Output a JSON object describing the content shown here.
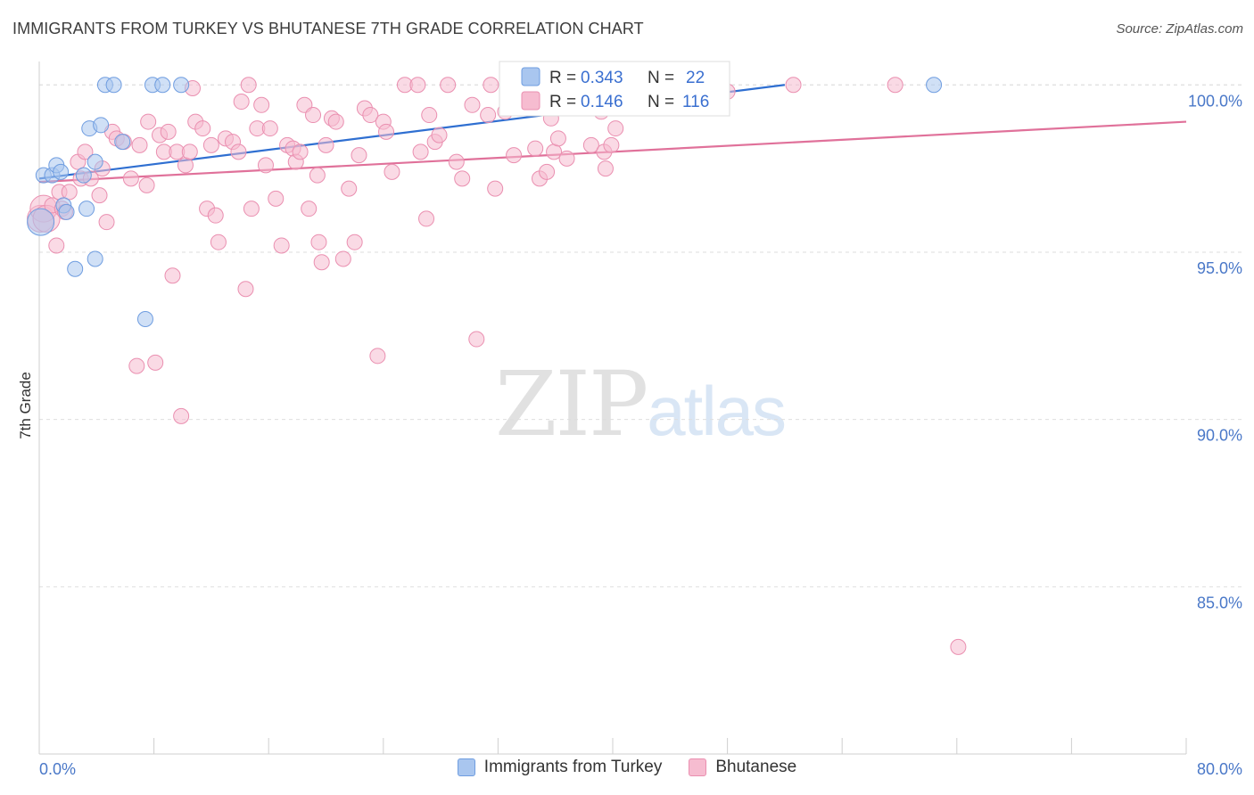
{
  "title": "IMMIGRANTS FROM TURKEY VS BHUTANESE 7TH GRADE CORRELATION CHART",
  "source": "Source: ZipAtlas.com",
  "watermark": {
    "zip": "ZIP",
    "atlas": "atlas"
  },
  "colors": {
    "blue_fill": "#a9c6ef",
    "blue_stroke": "#6f9de0",
    "blue_line": "#2f6fd1",
    "pink_fill": "#f6bcd0",
    "pink_stroke": "#ea8fb0",
    "pink_line": "#e0719a",
    "tick_label": "#4a78c8",
    "grid": "#dedede"
  },
  "legend_box": {
    "row1": {
      "r_label": "R = ",
      "r_value": "0.343",
      "n_label": "N = ",
      "n_value": "22"
    },
    "row2": {
      "r_label": "R = ",
      "r_value": "0.146",
      "n_label": "N = ",
      "n_value": "116"
    }
  },
  "bottom_legend": {
    "series1": "Immigrants from Turkey",
    "series2": "Bhutanese"
  },
  "chart_data": {
    "type": "scatter",
    "ylabel": "7th Grade",
    "xlim": [
      0,
      80
    ],
    "ylim": [
      80.0,
      100.7
    ],
    "x_tick_labels": {
      "left": "0.0%",
      "right": "80.0%"
    },
    "y_ticks": [
      {
        "value": 100,
        "label": "100.0%"
      },
      {
        "value": 95,
        "label": "95.0%"
      },
      {
        "value": 90,
        "label": "90.0%"
      },
      {
        "value": 85,
        "label": "85.0%"
      }
    ],
    "grid": true,
    "legend": "top-center",
    "series": [
      {
        "name": "Immigrants from Turkey",
        "color": "blue",
        "trend": {
          "x": [
            0,
            52
          ],
          "y": [
            97.2,
            100.0
          ]
        },
        "points": [
          [
            0.1,
            95.9
          ],
          [
            0.3,
            97.3
          ],
          [
            0.9,
            97.3
          ],
          [
            1.2,
            97.6
          ],
          [
            1.5,
            97.4
          ],
          [
            1.7,
            96.4
          ],
          [
            1.9,
            96.2
          ],
          [
            2.5,
            94.5
          ],
          [
            3.1,
            97.3
          ],
          [
            3.3,
            96.3
          ],
          [
            3.5,
            98.7
          ],
          [
            3.9,
            97.7
          ],
          [
            3.9,
            94.8
          ],
          [
            4.3,
            98.8
          ],
          [
            4.6,
            100.0
          ],
          [
            5.2,
            100.0
          ],
          [
            5.8,
            98.3
          ],
          [
            7.4,
            93.0
          ],
          [
            7.9,
            100.0
          ],
          [
            8.6,
            100.0
          ],
          [
            9.9,
            100.0
          ],
          [
            62.4,
            100.0
          ]
        ]
      },
      {
        "name": "Bhutanese",
        "color": "pink",
        "trend": {
          "x": [
            0,
            80
          ],
          "y": [
            97.1,
            98.9
          ]
        },
        "points": [
          [
            0.1,
            96.0
          ],
          [
            0.3,
            96.3
          ],
          [
            0.5,
            96.0
          ],
          [
            0.9,
            96.4
          ],
          [
            1.2,
            95.2
          ],
          [
            1.4,
            96.8
          ],
          [
            1.6,
            96.3
          ],
          [
            1.8,
            96.2
          ],
          [
            2.1,
            96.8
          ],
          [
            2.7,
            97.7
          ],
          [
            2.9,
            97.2
          ],
          [
            3.2,
            98.0
          ],
          [
            3.6,
            97.2
          ],
          [
            4.2,
            96.7
          ],
          [
            4.4,
            97.5
          ],
          [
            4.7,
            95.9
          ],
          [
            5.1,
            98.6
          ],
          [
            5.4,
            98.4
          ],
          [
            5.9,
            98.3
          ],
          [
            6.4,
            97.2
          ],
          [
            6.8,
            91.6
          ],
          [
            7.0,
            98.2
          ],
          [
            7.5,
            97.0
          ],
          [
            7.6,
            98.9
          ],
          [
            8.1,
            91.7
          ],
          [
            8.4,
            98.5
          ],
          [
            8.7,
            98.0
          ],
          [
            9.0,
            98.6
          ],
          [
            9.3,
            94.3
          ],
          [
            9.6,
            98.0
          ],
          [
            9.9,
            90.1
          ],
          [
            10.2,
            97.6
          ],
          [
            10.5,
            98.0
          ],
          [
            10.7,
            99.9
          ],
          [
            10.9,
            98.9
          ],
          [
            11.4,
            98.7
          ],
          [
            11.7,
            96.3
          ],
          [
            12.0,
            98.2
          ],
          [
            12.3,
            96.1
          ],
          [
            12.5,
            95.3
          ],
          [
            13.0,
            98.4
          ],
          [
            13.5,
            98.3
          ],
          [
            13.9,
            98.0
          ],
          [
            14.1,
            99.5
          ],
          [
            14.4,
            93.9
          ],
          [
            14.8,
            96.3
          ],
          [
            15.2,
            98.7
          ],
          [
            15.5,
            99.4
          ],
          [
            15.8,
            97.6
          ],
          [
            16.1,
            98.7
          ],
          [
            16.5,
            96.6
          ],
          [
            16.9,
            95.2
          ],
          [
            17.3,
            98.2
          ],
          [
            17.7,
            98.1
          ],
          [
            17.9,
            97.7
          ],
          [
            18.2,
            98.0
          ],
          [
            18.5,
            99.4
          ],
          [
            18.8,
            96.3
          ],
          [
            19.1,
            99.1
          ],
          [
            19.5,
            95.3
          ],
          [
            19.7,
            94.7
          ],
          [
            20.0,
            98.2
          ],
          [
            20.4,
            99.0
          ],
          [
            20.7,
            98.9
          ],
          [
            21.2,
            94.8
          ],
          [
            21.6,
            96.9
          ],
          [
            22.0,
            95.3
          ],
          [
            22.3,
            97.9
          ],
          [
            22.7,
            99.3
          ],
          [
            23.1,
            99.1
          ],
          [
            23.6,
            91.9
          ],
          [
            24.0,
            98.9
          ],
          [
            24.2,
            98.6
          ],
          [
            24.6,
            97.4
          ],
          [
            25.5,
            100.0
          ],
          [
            26.4,
            100.0
          ],
          [
            27.0,
            96.0
          ],
          [
            27.2,
            99.1
          ],
          [
            27.6,
            98.3
          ],
          [
            27.9,
            98.5
          ],
          [
            28.5,
            100.0
          ],
          [
            29.1,
            97.7
          ],
          [
            29.5,
            97.2
          ],
          [
            30.5,
            92.4
          ],
          [
            31.3,
            99.1
          ],
          [
            31.8,
            96.9
          ],
          [
            31.5,
            100.0
          ],
          [
            32.5,
            99.2
          ],
          [
            33.1,
            97.9
          ],
          [
            33.9,
            99.5
          ],
          [
            34.6,
            98.1
          ],
          [
            34.9,
            97.2
          ],
          [
            35.4,
            97.4
          ],
          [
            35.7,
            99.0
          ],
          [
            35.9,
            98.0
          ],
          [
            36.2,
            98.4
          ],
          [
            36.8,
            97.8
          ],
          [
            37.5,
            99.8
          ],
          [
            38.5,
            98.2
          ],
          [
            39.2,
            99.2
          ],
          [
            39.4,
            98.0
          ],
          [
            39.5,
            97.5
          ],
          [
            39.9,
            98.2
          ],
          [
            40.2,
            98.7
          ],
          [
            40.6,
            99.4
          ],
          [
            41.0,
            100.0
          ],
          [
            44.6,
            99.7
          ],
          [
            46.5,
            100.0
          ],
          [
            48.0,
            99.8
          ],
          [
            52.6,
            100.0
          ],
          [
            59.7,
            100.0
          ],
          [
            64.1,
            83.2
          ],
          [
            19.4,
            97.3
          ],
          [
            14.6,
            100.0
          ],
          [
            26.6,
            98.0
          ],
          [
            30.2,
            99.4
          ]
        ]
      }
    ]
  }
}
